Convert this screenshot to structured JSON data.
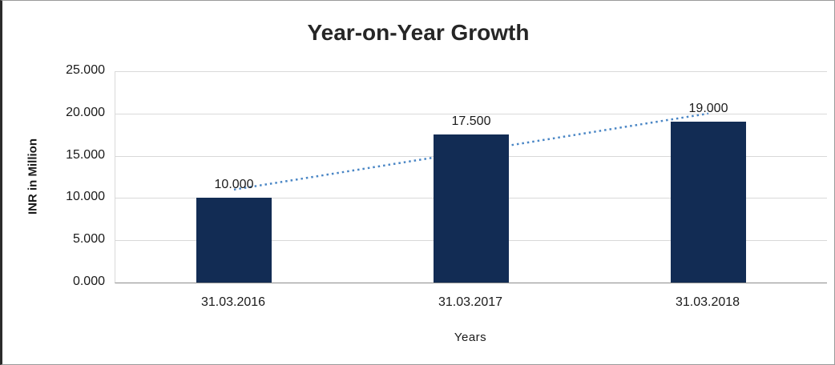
{
  "chart_data": {
    "type": "bar",
    "title": "Year-on-Year Growth",
    "xlabel": "Years",
    "ylabel": "INR in Million",
    "categories": [
      "31.03.2016",
      "31.03.2017",
      "31.03.2018"
    ],
    "values": [
      10,
      17.5,
      19
    ],
    "value_labels": [
      "10.000",
      "17.500",
      "19.000"
    ],
    "y_ticks": [
      0,
      5,
      10,
      15,
      20,
      25
    ],
    "y_tick_labels": [
      "0.000",
      "5.000",
      "10.000",
      "15.000",
      "20.000",
      "25.000"
    ],
    "ylim": [
      0,
      25
    ],
    "grid": true,
    "legend": "none",
    "bar_color": "#122c54",
    "gridline_color": "#d9d9d9",
    "axis_line_color": "#8c8c8c",
    "trendline": {
      "type": "linear",
      "style": "dotted",
      "color": "#4a86c5",
      "start_value": 11,
      "end_value": 20
    }
  }
}
